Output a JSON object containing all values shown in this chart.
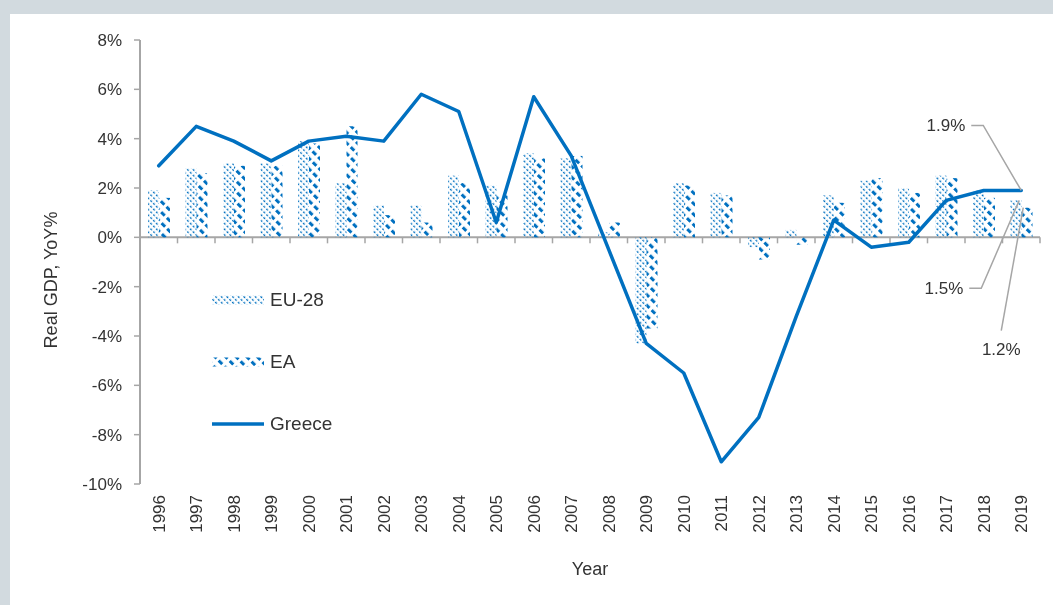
{
  "chart_data": {
    "type": "bar",
    "xlabel": "Year",
    "ylabel": "Real GDP, YoY%",
    "categories": [
      "1996",
      "1997",
      "1998",
      "1999",
      "2000",
      "2001",
      "2002",
      "2003",
      "2004",
      "2005",
      "2006",
      "2007",
      "2008",
      "2009",
      "2010",
      "2011",
      "2012",
      "2013",
      "2014",
      "2015",
      "2016",
      "2017",
      "2018",
      "2019"
    ],
    "series": [
      {
        "name": "EU-28",
        "color": "#0070c0",
        "values": [
          1.9,
          2.8,
          3.0,
          3.0,
          3.9,
          2.2,
          1.3,
          1.3,
          2.5,
          2.1,
          3.4,
          3.2,
          0.2,
          -4.3,
          2.2,
          1.8,
          -0.4,
          0.3,
          1.7,
          2.3,
          2.0,
          2.5,
          1.9,
          1.5
        ]
      },
      {
        "name": "EA",
        "color": "#0070c0",
        "values": [
          1.6,
          2.6,
          2.9,
          2.9,
          3.8,
          4.5,
          0.9,
          0.6,
          2.2,
          1.7,
          3.2,
          3.3,
          0.6,
          -3.7,
          2.1,
          1.7,
          -0.9,
          -0.3,
          1.4,
          2.4,
          1.8,
          2.4,
          1.6,
          1.2
        ]
      },
      {
        "name": "Greece",
        "type": "line",
        "color": "#0070c0",
        "values": [
          2.9,
          4.5,
          3.9,
          3.1,
          3.9,
          4.1,
          3.9,
          5.8,
          5.1,
          0.6,
          5.7,
          3.3,
          -0.5,
          -4.3,
          -5.5,
          -9.1,
          -7.3,
          -3.2,
          0.7,
          -0.4,
          -0.2,
          1.5,
          1.9,
          1.9
        ]
      }
    ],
    "ylim": [
      -10,
      8
    ],
    "yticks": [
      {
        "value": -10,
        "label": "-10%"
      },
      {
        "value": -8,
        "label": "-8%"
      },
      {
        "value": -6,
        "label": "-6%"
      },
      {
        "value": -4,
        "label": "-4%"
      },
      {
        "value": -2,
        "label": "-2%"
      },
      {
        "value": 0,
        "label": "0%"
      },
      {
        "value": 2,
        "label": "2%"
      },
      {
        "value": 4,
        "label": "4%"
      },
      {
        "value": 6,
        "label": "6%"
      },
      {
        "value": 8,
        "label": "8%"
      }
    ],
    "legend": "left",
    "annotations": [
      {
        "text": "1.9%",
        "x": "2019",
        "y": 1.9
      },
      {
        "text": "1.5%",
        "x": "2019",
        "y": 1.5
      },
      {
        "text": "1.2%",
        "x": "2019",
        "y": 1.2
      }
    ]
  }
}
